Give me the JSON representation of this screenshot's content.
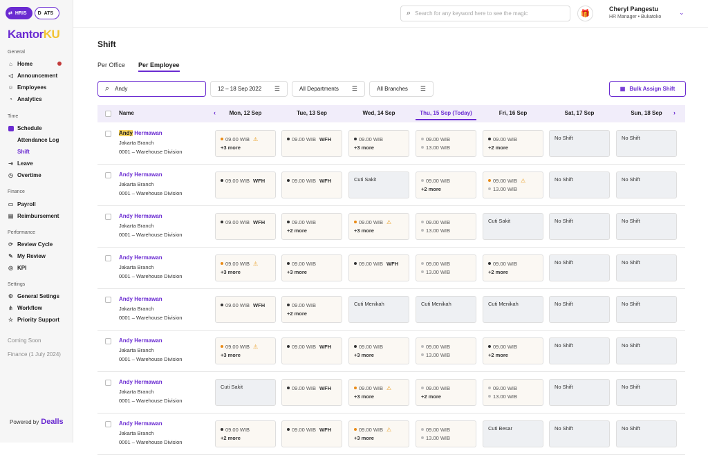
{
  "switcher": {
    "hris": "HRIS",
    "ats": "ATS"
  },
  "brand": {
    "part1": "Kantor",
    "part2": "KU"
  },
  "sidebar": {
    "general_label": "General",
    "home": "Home",
    "announcement": "Announcement",
    "employees": "Employees",
    "analytics": "Analytics",
    "time_label": "Time",
    "schedule": "Schedule",
    "attendance_log": "Attendance Log",
    "shift": "Shift",
    "leave": "Leave",
    "overtime": "Overtime",
    "finance_label": "Finance",
    "payroll": "Payroll",
    "reimbursement": "Reimbursement",
    "performance_label": "Performance",
    "review_cycle": "Review Cycle",
    "my_review": "My Review",
    "kpi": "KPI",
    "settings_label": "Settings",
    "general_settings": "General Setings",
    "workflow": "Workflow",
    "priority_support": "Priority Support",
    "coming_soon": "Coming Soon",
    "finance_soon": "Finance (1 July 2024)",
    "powered_by": "Powered by",
    "powered_brand": "Dealls"
  },
  "header": {
    "search_placeholder": "Search for any keyword here to see the magic",
    "user_name": "Cheryl Pangestu",
    "user_role": "HR Manager • Bukatoko"
  },
  "page": {
    "title": "Shift",
    "tab_office": "Per Office",
    "tab_employee": "Per Employee",
    "search_value": "Andy",
    "date_range": "12 – 18 Sep 2022",
    "department": "All Departments",
    "branch": "All Branches",
    "bulk_assign": "Bulk Assign Shift"
  },
  "table": {
    "name_header": "Name",
    "days": [
      "Mon, 12 Sep",
      "Tue, 13 Sep",
      "Wed, 14 Sep",
      "Thu, 15 Sep (Today)",
      "Fri, 16 Sep",
      "Sat, 17 Sep",
      "Sun, 18 Sep"
    ],
    "employees": [
      {
        "name_hl": "Andy",
        "name_rest": " Hermawan",
        "branch": "Jakarta Branch",
        "id": "0001 – Warehouse Division",
        "cells": [
          {
            "bg": "cream",
            "lines": [
              {
                "dot": "o",
                "text": "09.00 WIB",
                "warn": true
              }
            ],
            "more": "+3 more"
          },
          {
            "bg": "cream",
            "lines": [
              {
                "dot": "g",
                "text": "09.00 WIB",
                "wfh": "WFH"
              }
            ]
          },
          {
            "bg": "cream",
            "lines": [
              {
                "dot": "g",
                "text": "09.00 WIB"
              }
            ],
            "more": "+3 more"
          },
          {
            "bg": "cream",
            "lines": [
              {
                "dot": "l",
                "text": "09.00 WIB"
              },
              {
                "dot": "l",
                "text": "13.00 WIB"
              }
            ]
          },
          {
            "bg": "cream",
            "lines": [
              {
                "dot": "g",
                "text": "09.00 WIB"
              }
            ],
            "more": "+2 more"
          },
          {
            "bg": "gray",
            "plain": "No Shift"
          },
          {
            "bg": "gray",
            "plain": "No Shift"
          }
        ]
      },
      {
        "name_hl": "",
        "name_rest": "Andy Hermawan",
        "branch": "Jakarta Branch",
        "id": "0001 – Warehouse Division",
        "cells": [
          {
            "bg": "cream",
            "lines": [
              {
                "dot": "g",
                "text": "09.00 WIB",
                "wfh": "WFH"
              }
            ]
          },
          {
            "bg": "cream",
            "lines": [
              {
                "dot": "g",
                "text": "09.00 WIB",
                "wfh": "WFH"
              }
            ]
          },
          {
            "bg": "gray",
            "plain": "Cuti Sakit"
          },
          {
            "bg": "cream",
            "lines": [
              {
                "dot": "l",
                "text": "09.00 WIB"
              }
            ],
            "more": "+2 more"
          },
          {
            "bg": "cream",
            "lines": [
              {
                "dot": "o",
                "text": "09.00 WIB",
                "warn": true
              },
              {
                "dot": "l",
                "text": "13.00 WIB"
              }
            ]
          },
          {
            "bg": "gray",
            "plain": "No Shift"
          },
          {
            "bg": "gray",
            "plain": "No Shift"
          }
        ]
      },
      {
        "name_hl": "",
        "name_rest": "Andy Hermawan",
        "branch": "Jakarta Branch",
        "id": "0001 – Warehouse Division",
        "cells": [
          {
            "bg": "cream",
            "lines": [
              {
                "dot": "g",
                "text": "09.00 WIB",
                "wfh": "WFH"
              }
            ]
          },
          {
            "bg": "cream",
            "lines": [
              {
                "dot": "g",
                "text": "09.00 WIB"
              }
            ],
            "more": "+2 more"
          },
          {
            "bg": "cream",
            "lines": [
              {
                "dot": "o",
                "text": "09.00 WIB",
                "warn": true
              }
            ],
            "more": "+3 more"
          },
          {
            "bg": "cream",
            "lines": [
              {
                "dot": "l",
                "text": "09.00 WIB"
              },
              {
                "dot": "l",
                "text": "13.00 WIB"
              }
            ]
          },
          {
            "bg": "gray",
            "plain": "Cuti Sakit"
          },
          {
            "bg": "gray",
            "plain": "No Shift"
          },
          {
            "bg": "gray",
            "plain": "No Shift"
          }
        ]
      },
      {
        "name_hl": "",
        "name_rest": "Andy Hermawan",
        "branch": "Jakarta Branch",
        "id": "0001 – Warehouse Division",
        "cells": [
          {
            "bg": "cream",
            "lines": [
              {
                "dot": "o",
                "text": "09.00 WIB",
                "warn": true
              }
            ],
            "more": "+3 more"
          },
          {
            "bg": "cream",
            "lines": [
              {
                "dot": "g",
                "text": "09.00 WIB"
              }
            ],
            "more": "+3 more"
          },
          {
            "bg": "cream",
            "lines": [
              {
                "dot": "g",
                "text": "09.00 WIB",
                "wfh": "WFH"
              }
            ]
          },
          {
            "bg": "cream",
            "lines": [
              {
                "dot": "l",
                "text": "09.00 WIB"
              },
              {
                "dot": "l",
                "text": "13.00 WIB"
              }
            ]
          },
          {
            "bg": "cream",
            "lines": [
              {
                "dot": "g",
                "text": "09.00 WIB"
              }
            ],
            "more": "+2 more"
          },
          {
            "bg": "gray",
            "plain": "No Shift"
          },
          {
            "bg": "gray",
            "plain": "No Shift"
          }
        ]
      },
      {
        "name_hl": "",
        "name_rest": "Andy Hermawan",
        "branch": "Jakarta Branch",
        "id": "0001 – Warehouse Division",
        "cells": [
          {
            "bg": "cream",
            "lines": [
              {
                "dot": "g",
                "text": "09.00 WIB",
                "wfh": "WFH"
              }
            ]
          },
          {
            "bg": "cream",
            "lines": [
              {
                "dot": "g",
                "text": "09.00 WIB"
              }
            ],
            "more": "+2 more"
          },
          {
            "bg": "gray",
            "plain": "Cuti Menikah"
          },
          {
            "bg": "gray",
            "plain": "Cuti Menikah"
          },
          {
            "bg": "gray",
            "plain": "Cuti Menikah"
          },
          {
            "bg": "gray",
            "plain": "No Shift"
          },
          {
            "bg": "gray",
            "plain": "No Shift"
          }
        ]
      },
      {
        "name_hl": "",
        "name_rest": "Andy Hermawan",
        "branch": "Jakarta Branch",
        "id": "0001 – Warehouse Division",
        "cells": [
          {
            "bg": "cream",
            "lines": [
              {
                "dot": "o",
                "text": "09.00 WIB",
                "warn": true
              }
            ],
            "more": "+3 more"
          },
          {
            "bg": "cream",
            "lines": [
              {
                "dot": "g",
                "text": "09.00 WIB",
                "wfh": "WFH"
              }
            ]
          },
          {
            "bg": "cream",
            "lines": [
              {
                "dot": "g",
                "text": "09.00 WIB"
              }
            ],
            "more": "+3 more"
          },
          {
            "bg": "cream",
            "lines": [
              {
                "dot": "l",
                "text": "09.00 WIB"
              },
              {
                "dot": "l",
                "text": "13.00 WIB"
              }
            ]
          },
          {
            "bg": "cream",
            "lines": [
              {
                "dot": "g",
                "text": "09.00 WIB"
              }
            ],
            "more": "+2 more"
          },
          {
            "bg": "gray",
            "plain": "No Shift"
          },
          {
            "bg": "gray",
            "plain": "No Shift"
          }
        ]
      },
      {
        "name_hl": "",
        "name_rest": "Andy Hermawan",
        "branch": "Jakarta Branch",
        "id": "0001 – Warehouse Division",
        "cells": [
          {
            "bg": "gray",
            "plain": "Cuti Sakit"
          },
          {
            "bg": "cream",
            "lines": [
              {
                "dot": "g",
                "text": "09.00 WIB",
                "wfh": "WFH"
              }
            ]
          },
          {
            "bg": "cream",
            "lines": [
              {
                "dot": "o",
                "text": "09.00 WIB",
                "warn": true
              }
            ],
            "more": "+3 more"
          },
          {
            "bg": "cream",
            "lines": [
              {
                "dot": "l",
                "text": "09.00 WIB"
              }
            ],
            "more": "+2 more"
          },
          {
            "bg": "cream",
            "lines": [
              {
                "dot": "l",
                "text": "09.00 WIB"
              },
              {
                "dot": "l",
                "text": "13.00 WIB"
              }
            ]
          },
          {
            "bg": "gray",
            "plain": "No Shift"
          },
          {
            "bg": "gray",
            "plain": "No Shift"
          }
        ]
      },
      {
        "name_hl": "",
        "name_rest": "Andy Hermawan",
        "branch": "Jakarta Branch",
        "id": "0001 – Warehouse Division",
        "cells": [
          {
            "bg": "cream",
            "lines": [
              {
                "dot": "g",
                "text": "09.00 WIB"
              }
            ],
            "more": "+2 more"
          },
          {
            "bg": "cream",
            "lines": [
              {
                "dot": "g",
                "text": "09.00 WIB",
                "wfh": "WFH"
              }
            ]
          },
          {
            "bg": "cream",
            "lines": [
              {
                "dot": "o",
                "text": "09.00 WIB",
                "warn": true
              }
            ],
            "more": "+3 more"
          },
          {
            "bg": "cream",
            "lines": [
              {
                "dot": "l",
                "text": "09.00 WIB"
              },
              {
                "dot": "l",
                "text": "13.00 WIB"
              }
            ]
          },
          {
            "bg": "gray",
            "plain": "Cuti Besar"
          },
          {
            "bg": "gray",
            "plain": "No Shift"
          },
          {
            "bg": "gray",
            "plain": "No Shift"
          }
        ]
      }
    ]
  }
}
